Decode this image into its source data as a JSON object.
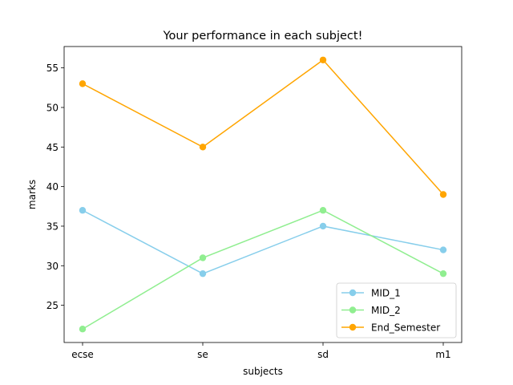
{
  "chart_data": {
    "type": "line",
    "title": "Your performance in each subject!",
    "xlabel": "subjects",
    "ylabel": "marks",
    "categories": [
      "ecse",
      "se",
      "sd",
      "m1"
    ],
    "ylim": [
      20.3,
      57.7
    ],
    "yticks": [
      25,
      30,
      35,
      40,
      45,
      50,
      55
    ],
    "grid": false,
    "legend_position": "lower-right",
    "series": [
      {
        "name": "MID_1",
        "values": [
          37,
          29,
          35,
          32
        ],
        "color": "#87ceeb"
      },
      {
        "name": "MID_2",
        "values": [
          22,
          31,
          37,
          29
        ],
        "color": "#90ee90"
      },
      {
        "name": "End_Semester",
        "values": [
          53,
          45,
          56,
          39
        ],
        "color": "#ffa500"
      }
    ]
  }
}
